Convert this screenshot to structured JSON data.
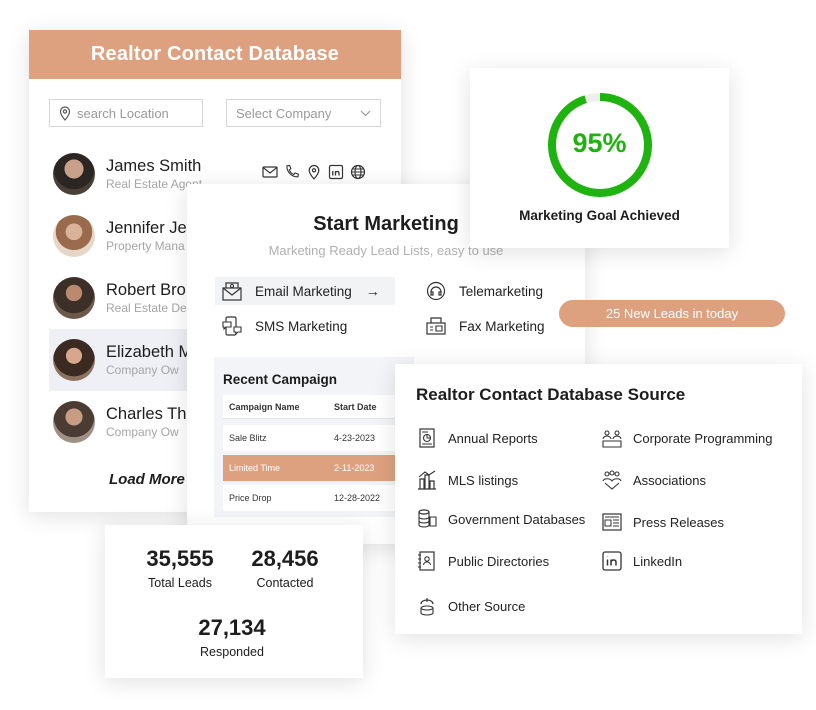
{
  "contact_db": {
    "title": "Realtor Contact Database",
    "search_placeholder": "search Location",
    "company_placeholder": "Select Company",
    "contacts": [
      {
        "name": "James Smith",
        "role": "Real Estate Agent"
      },
      {
        "name": "Jennifer Je",
        "role": "Property Mana"
      },
      {
        "name": "Robert Bro",
        "role": "Real Estate De"
      },
      {
        "name": "Elizabeth M",
        "role": "Company Ow"
      },
      {
        "name": "Charles Th",
        "role": "Company Ow"
      }
    ],
    "load_more": "Load More"
  },
  "marketing": {
    "title": "Start Marketing",
    "subtitle": "Marketing Ready Lead Lists, easy to use",
    "email": "Email Marketing",
    "tele": "Telemarketing",
    "sms": "SMS Marketing",
    "fax": "Fax Marketing",
    "arrow": "→",
    "campaign": {
      "title": "Recent Campaign",
      "col_name": "Campaign Name",
      "col_date": "Start Date",
      "rows": [
        {
          "name": "Sale Blitz",
          "date": "4-23-2023"
        },
        {
          "name": "Limited Time",
          "date": "2-11-2023"
        },
        {
          "name": "Price Drop",
          "date": "12-28-2022"
        }
      ]
    }
  },
  "goal": {
    "percent_text": "95%",
    "percent_value": 95,
    "label": "Marketing Goal Achieved",
    "ring_color": "#1fb30f"
  },
  "leads_badge": "25 New Leads in today",
  "sources": {
    "title": "Realtor Contact Database Source",
    "left": [
      "Annual Reports",
      "MLS listings",
      "Government Databases",
      "Public Directories",
      "Other Source"
    ],
    "right": [
      "Corporate Programming",
      "Associations",
      "Press Releases",
      "LinkedIn"
    ]
  },
  "stats": {
    "total_leads": "35,555",
    "total_leads_label": "Total Leads",
    "contacted": "28,456",
    "contacted_label": "Contacted",
    "responded": "27,134",
    "responded_label": "Responded"
  },
  "colors": {
    "accent": "#dea180",
    "success": "#1fb30f"
  }
}
